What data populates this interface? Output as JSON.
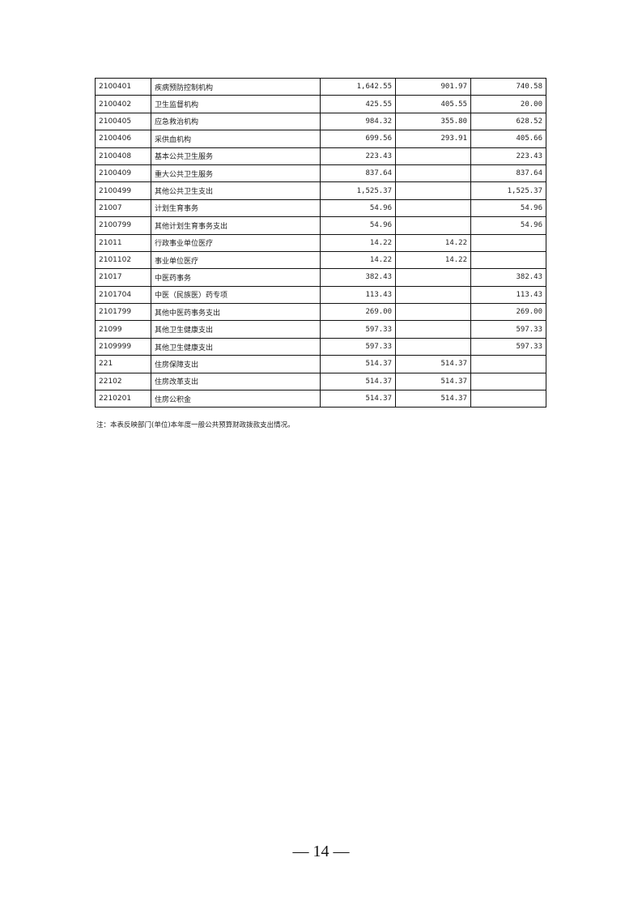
{
  "rows": [
    {
      "code": "2100401",
      "name": "疾病预防控制机构",
      "total": "1,642.55",
      "basic": "901.97",
      "project": "740.58"
    },
    {
      "code": "2100402",
      "name": "卫生监督机构",
      "total": "425.55",
      "basic": "405.55",
      "project": "20.00"
    },
    {
      "code": "2100405",
      "name": "应急救治机构",
      "total": "984.32",
      "basic": "355.80",
      "project": "628.52"
    },
    {
      "code": "2100406",
      "name": "采供血机构",
      "total": "699.56",
      "basic": "293.91",
      "project": "405.66"
    },
    {
      "code": "2100408",
      "name": "基本公共卫生服务",
      "total": "223.43",
      "basic": "",
      "project": "223.43"
    },
    {
      "code": "2100409",
      "name": "重大公共卫生服务",
      "total": "837.64",
      "basic": "",
      "project": "837.64"
    },
    {
      "code": "2100499",
      "name": "其他公共卫生支出",
      "total": "1,525.37",
      "basic": "",
      "project": "1,525.37"
    },
    {
      "code": "21007",
      "name": "计划生育事务",
      "total": "54.96",
      "basic": "",
      "project": "54.96"
    },
    {
      "code": "2100799",
      "name": "其他计划生育事务支出",
      "total": "54.96",
      "basic": "",
      "project": "54.96"
    },
    {
      "code": "21011",
      "name": "行政事业单位医疗",
      "total": "14.22",
      "basic": "14.22",
      "project": ""
    },
    {
      "code": "2101102",
      "name": "事业单位医疗",
      "total": "14.22",
      "basic": "14.22",
      "project": ""
    },
    {
      "code": "21017",
      "name": "中医药事务",
      "total": "382.43",
      "basic": "",
      "project": "382.43"
    },
    {
      "code": "2101704",
      "name": "中医（民族医）药专项",
      "total": "113.43",
      "basic": "",
      "project": "113.43"
    },
    {
      "code": "2101799",
      "name": "其他中医药事务支出",
      "total": "269.00",
      "basic": "",
      "project": "269.00"
    },
    {
      "code": "21099",
      "name": "其他卫生健康支出",
      "total": "597.33",
      "basic": "",
      "project": "597.33"
    },
    {
      "code": "2109999",
      "name": "其他卫生健康支出",
      "total": "597.33",
      "basic": "",
      "project": "597.33"
    },
    {
      "code": "221",
      "name": "住房保障支出",
      "total": "514.37",
      "basic": "514.37",
      "project": ""
    },
    {
      "code": "22102",
      "name": "住房改革支出",
      "total": "514.37",
      "basic": "514.37",
      "project": ""
    },
    {
      "code": "2210201",
      "name": "住房公积金",
      "total": "514.37",
      "basic": "514.37",
      "project": ""
    }
  ],
  "note": "注：本表反映部门(单位)本年度一般公共预算财政拨款支出情况。",
  "page_number": "— 14 —"
}
